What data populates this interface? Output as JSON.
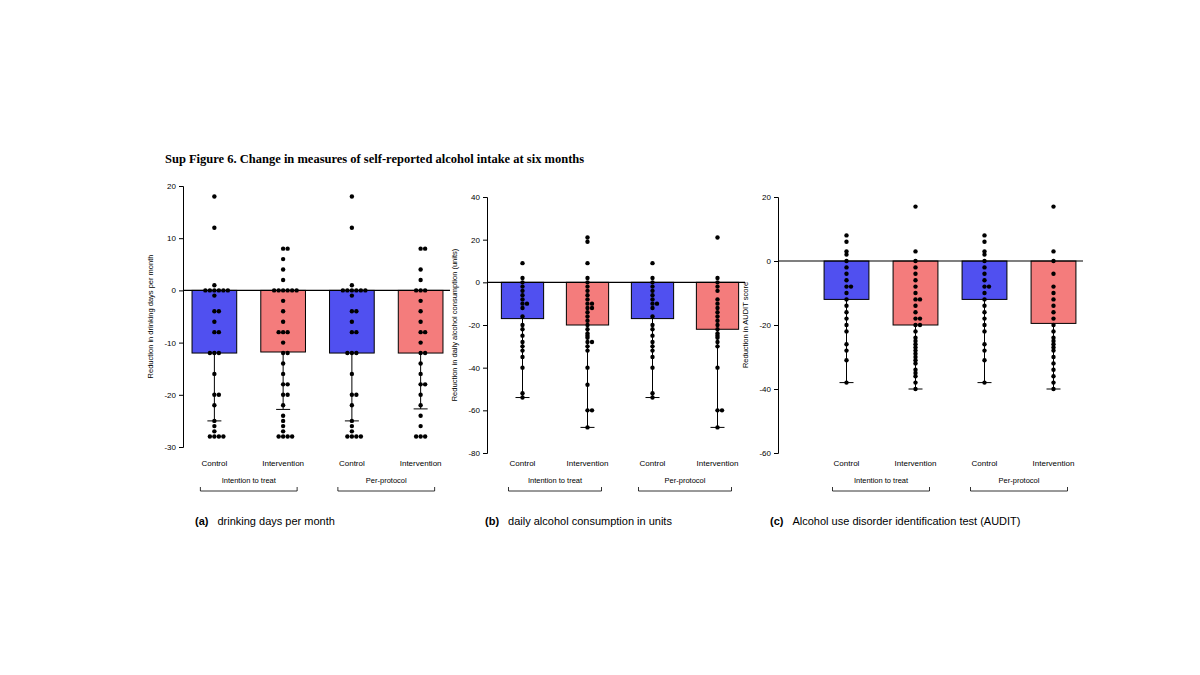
{
  "title": "Sup Figure 6. Change in measures of self-reported alcohol intake at six months",
  "chart_data": [
    {
      "type": "bar",
      "label": "(a)",
      "title": "drinking days per month",
      "ylabel": "Reduction in drinking days per month",
      "categories": [
        "Control",
        "Intervention",
        "Control",
        "Intervention"
      ],
      "groups": [
        "Intention to treat",
        "Per-protocol"
      ],
      "values": [
        -12,
        -11.8,
        -12,
        -12
      ],
      "errors": [
        13,
        11,
        13,
        10.7
      ],
      "colors": [
        "#5050f0",
        "#f47c7c",
        "#5050f0",
        "#f47c7c"
      ],
      "points": [
        [
          18,
          12,
          1,
          0,
          0,
          0,
          0,
          0,
          0,
          -1,
          -4,
          -4,
          -6,
          -8,
          -8,
          -12,
          -12,
          -12,
          -16,
          -20,
          -20,
          -22,
          -25,
          -26,
          -27,
          -28,
          -28,
          -28,
          -28
        ],
        [
          8,
          8,
          6,
          4,
          2,
          0,
          0,
          0,
          0,
          0,
          0,
          -2,
          -4,
          -6,
          -8,
          -8,
          -8,
          -10,
          -12,
          -12,
          -14,
          -16,
          -18,
          -18,
          -20,
          -20,
          -22,
          -24,
          -25,
          -26,
          -27,
          -28,
          -28,
          -28,
          -28
        ],
        [
          18,
          12,
          1,
          0,
          0,
          0,
          0,
          0,
          0,
          -1,
          -4,
          -4,
          -6,
          -8,
          -8,
          -12,
          -12,
          -12,
          -16,
          -20,
          -20,
          -22,
          -25,
          -26,
          -27,
          -28,
          -28,
          -28,
          -28
        ],
        [
          8,
          8,
          4,
          2,
          0,
          0,
          0,
          -2,
          -4,
          -6,
          -8,
          -8,
          -10,
          -12,
          -12,
          -14,
          -16,
          -18,
          -18,
          -20,
          -22,
          -24,
          -26,
          -28,
          -28,
          -28
        ]
      ],
      "ylim": [
        -30,
        20
      ],
      "yticks": [
        -30,
        -20,
        -10,
        0,
        10,
        20
      ]
    },
    {
      "type": "bar",
      "label": "(b)",
      "title": "daily alcohol consumption in units",
      "ylabel": "Reduction in daily alcohol consumption (units)",
      "categories": [
        "Control",
        "Intervention",
        "Control",
        "Intervention"
      ],
      "groups": [
        "Intention to treat",
        "Per-protocol"
      ],
      "values": [
        -17,
        -20,
        -17,
        -22
      ],
      "errors": [
        37,
        48,
        37,
        46
      ],
      "colors": [
        "#5050f0",
        "#f47c7c",
        "#5050f0",
        "#f47c7c"
      ],
      "points": [
        [
          9,
          2,
          0,
          -2,
          -4,
          -6,
          -8,
          -10,
          -10,
          -12,
          -16,
          -20,
          -22,
          -25,
          -28,
          -30,
          -32,
          -35,
          -40,
          -52,
          -54
        ],
        [
          21,
          19,
          9,
          2,
          0,
          -2,
          -4,
          -6,
          -8,
          -10,
          -10,
          -12,
          -12,
          -14,
          -16,
          -18,
          -20,
          -22,
          -24,
          -25,
          -26,
          -28,
          -28,
          -30,
          -32,
          -40,
          -48,
          -60,
          -60,
          -68
        ],
        [
          9,
          2,
          0,
          -2,
          -4,
          -6,
          -8,
          -10,
          -10,
          -12,
          -16,
          -20,
          -22,
          -25,
          -28,
          -30,
          -32,
          -35,
          -40,
          -52,
          -54
        ],
        [
          21,
          2,
          0,
          -2,
          -4,
          -8,
          -10,
          -12,
          -14,
          -16,
          -18,
          -20,
          -22,
          -24,
          -25,
          -26,
          -28,
          -30,
          -40,
          -60,
          -60,
          -68
        ]
      ],
      "ylim": [
        -80,
        40
      ],
      "yticks": [
        -80,
        -60,
        -40,
        -20,
        0,
        20,
        40
      ]
    },
    {
      "type": "bar",
      "label": "(c)",
      "title": "Alcohol use disorder identification test (AUDIT)",
      "ylabel": "Reduction in AUDIT score",
      "categories": [
        "Control",
        "Intervention",
        "Control",
        "Intervention"
      ],
      "groups": [
        "Intention to treat",
        "Per-protocol"
      ],
      "values": [
        -12,
        -20,
        -12,
        -19.5
      ],
      "errors": [
        26,
        20,
        26,
        20.5
      ],
      "colors": [
        "#5050f0",
        "#f47c7c",
        "#5050f0",
        "#f47c7c"
      ],
      "points": [
        [
          8,
          6,
          3,
          2,
          0,
          -2,
          -4,
          -6,
          -8,
          -8,
          -10,
          -12,
          -14,
          -16,
          -18,
          -20,
          -22,
          -26,
          -28,
          -31,
          -38
        ],
        [
          17,
          3,
          0,
          -2,
          -4,
          -6,
          -8,
          -10,
          -12,
          -12,
          -14,
          -16,
          -18,
          -18,
          -20,
          -20,
          -22,
          -24,
          -25,
          -26,
          -27,
          -28,
          -29,
          -30,
          -31,
          -32,
          -34,
          -35,
          -36,
          -38,
          -40
        ],
        [
          8,
          6,
          3,
          2,
          0,
          -2,
          -4,
          -6,
          -8,
          -8,
          -10,
          -12,
          -14,
          -16,
          -18,
          -20,
          -22,
          -26,
          -28,
          -31,
          -38
        ],
        [
          17,
          3,
          0,
          -4,
          -8,
          -10,
          -12,
          -14,
          -16,
          -18,
          -20,
          -22,
          -24,
          -25,
          -26,
          -27,
          -28,
          -30,
          -32,
          -34,
          -36,
          -38,
          -40
        ]
      ],
      "ylim": [
        -60,
        20
      ],
      "yticks": [
        -60,
        -40,
        -20,
        0,
        20
      ]
    }
  ]
}
